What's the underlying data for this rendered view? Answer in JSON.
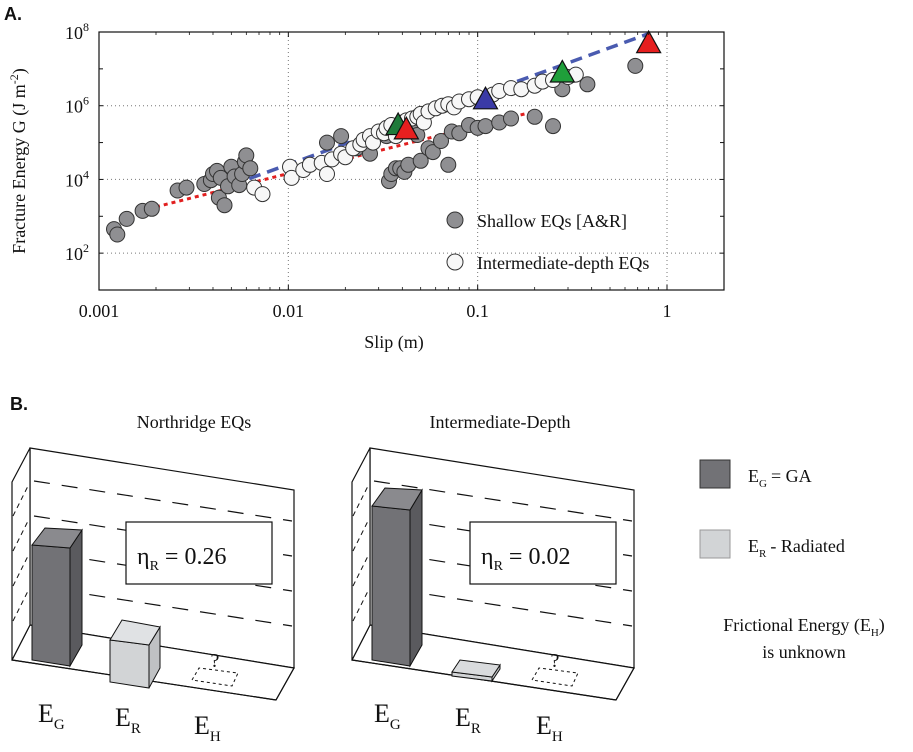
{
  "panel_a": {
    "label": "A.",
    "ylabel_main": "Fracture Energy G (J m",
    "ylabel_sup": "-2",
    "ylabel_close": ")",
    "legend": {
      "shallow": "Shallow EQs [A&R]",
      "intermediate": "Intermediate-depth EQs"
    }
  },
  "panel_b": {
    "label": "B.",
    "left_title": "Northridge EQs",
    "right_title": "Intermediate-Depth",
    "left_eta": "0.26",
    "right_eta": "0.02",
    "eta_symbol": "η",
    "eta_sub": "R",
    "eq": "=",
    "question": "?",
    "bar_labels": {
      "E": "E",
      "G": "G",
      "R": "R",
      "H": "H"
    },
    "legend": {
      "eg_text": "= GA",
      "er_text": "- Radiated",
      "frictional_line1_pre": "Frictional Energy (E",
      "frictional_line1_post": ")",
      "frictional_line2": "is unknown"
    },
    "colors": {
      "eg": "#727276",
      "er": "#d2d4d6"
    }
  },
  "chart_data": [
    {
      "type": "scatter",
      "title": "",
      "xlabel": "Slip (m)",
      "ylabel": "Fracture Energy G (J m-2)",
      "x_scale": "log",
      "y_scale": "log",
      "xlim": [
        0.001,
        2
      ],
      "ylim": [
        10,
        100000000
      ],
      "x_ticks": [
        {
          "v": 0.001,
          "label": "0.001"
        },
        {
          "v": 0.01,
          "label": "0.01"
        },
        {
          "v": 0.1,
          "label": "0.1"
        },
        {
          "v": 1,
          "label": "1"
        }
      ],
      "y_ticks": [
        {
          "v": 100,
          "label": "10",
          "exp": "2"
        },
        {
          "v": 10000,
          "label": "10",
          "exp": "4"
        },
        {
          "v": 1000000,
          "label": "10",
          "exp": "6"
        },
        {
          "v": 100000000,
          "label": "10",
          "exp": "8"
        }
      ],
      "grid": true,
      "legend_position": "bottom-right",
      "series": [
        {
          "name": "Shallow EQs [A&R]",
          "color": "#8f8f92",
          "marker": "circle",
          "points": [
            [
              0.0012,
              450
            ],
            [
              0.00125,
              320
            ],
            [
              0.0014,
              850
            ],
            [
              0.0017,
              1400
            ],
            [
              0.0019,
              1600
            ],
            [
              0.0026,
              5000
            ],
            [
              0.0029,
              6000
            ],
            [
              0.0036,
              7500
            ],
            [
              0.0039,
              9500
            ],
            [
              0.004,
              14000
            ],
            [
              0.0042,
              17000
            ],
            [
              0.0044,
              11000
            ],
            [
              0.0043,
              3200
            ],
            [
              0.0046,
              2000
            ],
            [
              0.0048,
              6500
            ],
            [
              0.005,
              22000
            ],
            [
              0.0052,
              12000
            ],
            [
              0.0055,
              7000
            ],
            [
              0.0057,
              14000
            ],
            [
              0.0059,
              30000
            ],
            [
              0.006,
              45000
            ],
            [
              0.0063,
              20000
            ],
            [
              0.016,
              100000
            ],
            [
              0.019,
              150000
            ],
            [
              0.023,
              70000
            ],
            [
              0.027,
              50000
            ],
            [
              0.03,
              180000
            ],
            [
              0.033,
              150000
            ],
            [
              0.034,
              9000
            ],
            [
              0.035,
              14000
            ],
            [
              0.037,
              20000
            ],
            [
              0.039,
              20000
            ],
            [
              0.041,
              16000
            ],
            [
              0.043,
              25000
            ],
            [
              0.045,
              200000
            ],
            [
              0.048,
              160000
            ],
            [
              0.05,
              32000
            ],
            [
              0.055,
              70000
            ],
            [
              0.058,
              55000
            ],
            [
              0.064,
              110000
            ],
            [
              0.07,
              25000
            ],
            [
              0.073,
              200000
            ],
            [
              0.08,
              180000
            ],
            [
              0.09,
              300000
            ],
            [
              0.1,
              250000
            ],
            [
              0.11,
              280000
            ],
            [
              0.13,
              350000
            ],
            [
              0.15,
              450000
            ],
            [
              0.2,
              500000
            ],
            [
              0.25,
              280000
            ],
            [
              0.28,
              2800000
            ],
            [
              0.38,
              3800000
            ],
            [
              0.68,
              12000000
            ]
          ]
        },
        {
          "name": "Intermediate-depth EQs",
          "color": "#f7f7f7",
          "marker": "circle",
          "points": [
            [
              0.0066,
              6000
            ],
            [
              0.0073,
              4000
            ],
            [
              0.0102,
              22000
            ],
            [
              0.0104,
              11000
            ],
            [
              0.012,
              18000
            ],
            [
              0.013,
              25000
            ],
            [
              0.015,
              28000
            ],
            [
              0.016,
              14000
            ],
            [
              0.017,
              35000
            ],
            [
              0.019,
              50000
            ],
            [
              0.02,
              40000
            ],
            [
              0.022,
              70000
            ],
            [
              0.024,
              90000
            ],
            [
              0.025,
              120000
            ],
            [
              0.027,
              150000
            ],
            [
              0.028,
              100000
            ],
            [
              0.03,
              200000
            ],
            [
              0.032,
              180000
            ],
            [
              0.033,
              250000
            ],
            [
              0.035,
              300000
            ],
            [
              0.037,
              150000
            ],
            [
              0.04,
              350000
            ],
            [
              0.042,
              400000
            ],
            [
              0.045,
              450000
            ],
            [
              0.048,
              500000
            ],
            [
              0.05,
              600000
            ],
            [
              0.052,
              350000
            ],
            [
              0.055,
              700000
            ],
            [
              0.06,
              850000
            ],
            [
              0.065,
              1000000
            ],
            [
              0.07,
              1100000
            ],
            [
              0.075,
              900000
            ],
            [
              0.08,
              1300000
            ],
            [
              0.09,
              1500000
            ],
            [
              0.1,
              1700000
            ],
            [
              0.12,
              2000000
            ],
            [
              0.13,
              2500000
            ],
            [
              0.15,
              3000000
            ],
            [
              0.17,
              2800000
            ],
            [
              0.2,
              3500000
            ],
            [
              0.22,
              4500000
            ],
            [
              0.25,
              5000000
            ],
            [
              0.3,
              6000000
            ],
            [
              0.33,
              7000000
            ]
          ]
        }
      ],
      "markers": [
        {
          "shape": "triangle",
          "color": "#1f7a3a",
          "x": 0.038,
          "y": 300000
        },
        {
          "shape": "triangle",
          "color": "#e61f1f",
          "x": 0.042,
          "y": 230000
        },
        {
          "shape": "triangle",
          "color": "#3a3aa6",
          "x": 0.11,
          "y": 1500000
        },
        {
          "shape": "triangle",
          "color": "#1f9f3a",
          "x": 0.28,
          "y": 8000000
        },
        {
          "shape": "triangle",
          "color": "#e61f1f",
          "x": 0.8,
          "y": 50000000
        }
      ],
      "fit_lines": [
        {
          "color": "#4a5bb0",
          "style": "dashed",
          "points": [
            [
              0.005,
              7000
            ],
            [
              0.8,
              90000000
            ]
          ]
        },
        {
          "color": "#e11f1f",
          "style": "dotted",
          "points": [
            [
              0.002,
              1800
            ],
            [
              0.2,
              700000
            ]
          ]
        }
      ]
    },
    {
      "type": "bar",
      "title": "Northridge EQs",
      "categories": [
        "E_G",
        "E_R",
        "E_H"
      ],
      "values": [
        0.74,
        0.26,
        null
      ]
    },
    {
      "type": "bar",
      "title": "Intermediate-Depth",
      "categories": [
        "E_G",
        "E_R",
        "E_H"
      ],
      "values": [
        0.98,
        0.02,
        null
      ]
    }
  ]
}
